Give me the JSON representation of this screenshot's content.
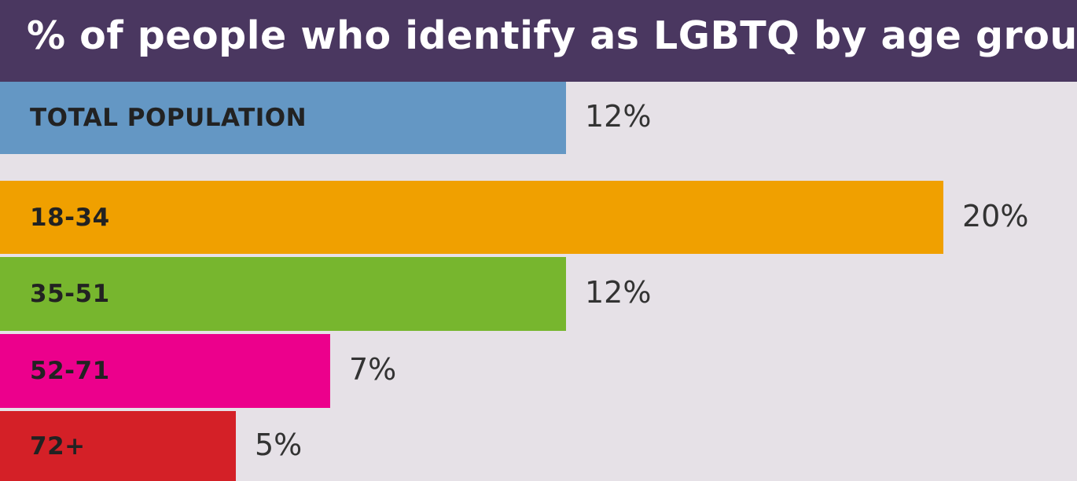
{
  "chart_data": {
    "type": "bar",
    "orientation": "horizontal",
    "title": "% of people who identify as LGBTQ by age group",
    "categories": [
      "TOTAL POPULATION",
      "18-34",
      "35-51",
      "52-71",
      "72+"
    ],
    "values": [
      12,
      20,
      12,
      7,
      5
    ],
    "value_labels": [
      "12%",
      "20%",
      "12%",
      "7%",
      "5%"
    ],
    "colors": [
      "#6497c4",
      "#f0a000",
      "#77b62e",
      "#ec008c",
      "#d42027"
    ],
    "xlim": [
      0,
      20
    ],
    "grid": false,
    "legend": "none"
  },
  "colors": {
    "title_background": "#4a3760",
    "background": "#e6e1e7",
    "title_text": "#ffffff"
  }
}
